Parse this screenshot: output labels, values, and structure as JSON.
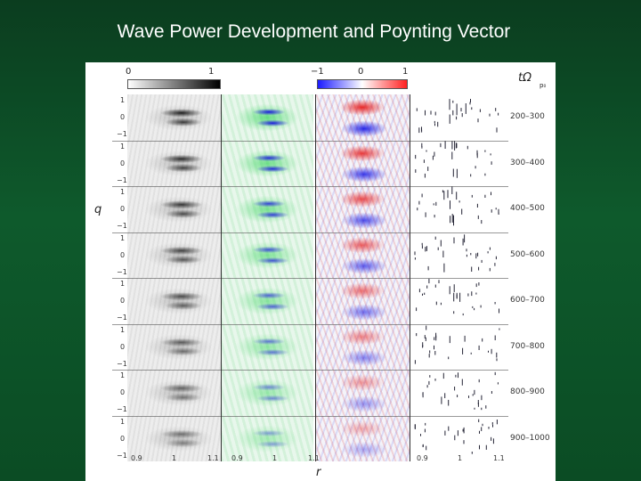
{
  "slide": {
    "title": "Wave Power Development and Poynting Vector"
  },
  "figure": {
    "colorbar_gray": {
      "min_label": "0",
      "max_label": "1"
    },
    "colorbar_rb": {
      "min_label": "−1",
      "mid_label": "0",
      "max_label": "1"
    },
    "time_header": "tΩ",
    "time_header_sub": "p₀",
    "y_axis_label": "q",
    "x_axis_label": "r",
    "row_tick_labels": [
      "1",
      "0",
      "−1"
    ],
    "x_tick_labels": [
      "0.9",
      "1",
      "1.1"
    ],
    "time_ranges": [
      "200–300",
      "300–400",
      "400–500",
      "500–600",
      "600–700",
      "700–800",
      "800–900",
      "900–1000"
    ],
    "columns": [
      "wave-power-intensity",
      "green-blue-field",
      "poynting-red-blue",
      "poynting-vectors"
    ]
  }
}
